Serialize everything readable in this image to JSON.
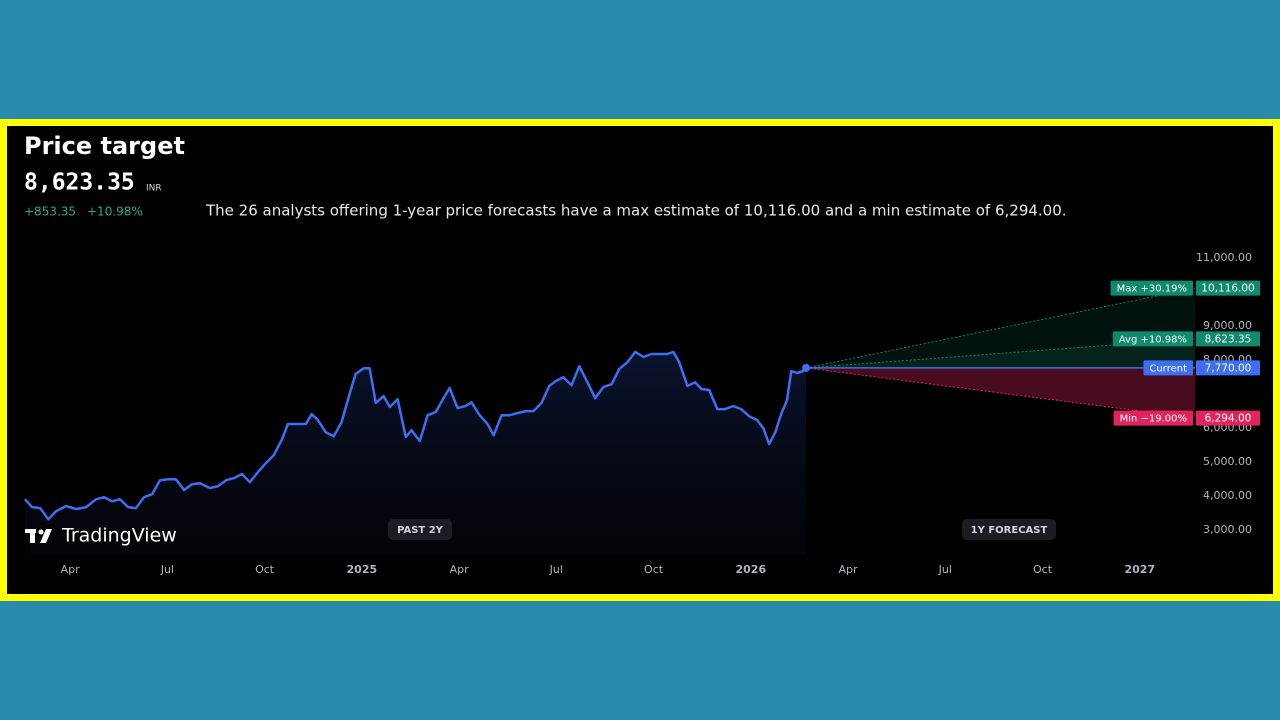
{
  "chart_data": {
    "type": "line",
    "title": "Price target",
    "price": "8,623.35",
    "currency": "INR",
    "change": "+853.35",
    "change_pct": "+10.98%",
    "description": "The 26 analysts offering 1-year price forecasts have a max estimate of 10,116.00 and a min estimate of 6,294.00.",
    "watermark": "TradingView",
    "badges": [
      "PAST 2Y",
      "1Y FORECAST"
    ],
    "color": "#3e6ff2",
    "x": [
      2024.134,
      2024.152,
      2024.173,
      2024.194,
      2024.214,
      2024.24,
      2024.265,
      2024.291,
      2024.317,
      2024.337,
      2024.358,
      2024.378,
      2024.399,
      2024.419,
      2024.44,
      2024.461,
      2024.481,
      2024.502,
      2024.522,
      2024.543,
      2024.563,
      2024.584,
      2024.609,
      2024.63,
      2024.651,
      2024.671,
      2024.692,
      2024.712,
      2024.733,
      2024.753,
      2024.774,
      2024.794,
      2024.81,
      2024.83,
      2024.856,
      2024.871,
      2024.887,
      2024.907,
      2024.928,
      2024.948,
      2024.969,
      2024.984,
      2025.005,
      2025.02,
      2025.036,
      2025.056,
      2025.072,
      2025.092,
      2025.113,
      2025.128,
      2025.149,
      2025.169,
      2025.19,
      2025.21,
      2025.226,
      2025.246,
      2025.267,
      2025.282,
      2025.303,
      2025.323,
      2025.339,
      2025.359,
      2025.38,
      2025.4,
      2025.421,
      2025.441,
      2025.462,
      2025.482,
      2025.498,
      2025.518,
      2025.539,
      2025.559,
      2025.58,
      2025.6,
      2025.621,
      2025.642,
      2025.662,
      2025.683,
      2025.703,
      2025.724,
      2025.744,
      2025.765,
      2025.785,
      2025.801,
      2025.816,
      2025.837,
      2025.857,
      2025.873,
      2025.893,
      2025.914,
      2025.934,
      2025.955,
      2025.975,
      2025.996,
      2026.016,
      2026.032,
      2026.047,
      2026.063,
      2026.078,
      2026.093,
      2026.104,
      2026.119,
      2026.135,
      2026.142
    ],
    "values": [
      3910,
      3680,
      3650,
      3320,
      3560,
      3710,
      3620,
      3680,
      3910,
      3970,
      3850,
      3910,
      3680,
      3650,
      3970,
      4060,
      4470,
      4500,
      4500,
      4180,
      4350,
      4380,
      4240,
      4290,
      4470,
      4530,
      4650,
      4410,
      4710,
      4970,
      5210,
      5650,
      6120,
      6120,
      6120,
      6410,
      6240,
      5880,
      5760,
      6180,
      7030,
      7590,
      7760,
      7760,
      6740,
      6940,
      6620,
      6850,
      5740,
      5940,
      5620,
      6380,
      6470,
      6880,
      7180,
      6590,
      6650,
      6760,
      6380,
      6120,
      5790,
      6380,
      6380,
      6440,
      6500,
      6500,
      6740,
      7240,
      7380,
      7500,
      7260,
      7820,
      7350,
      6880,
      7210,
      7290,
      7740,
      7940,
      8240,
      8090,
      8180,
      8180,
      8180,
      8240,
      7940,
      7240,
      7350,
      7150,
      7120,
      6560,
      6560,
      6650,
      6560,
      6350,
      6240,
      6000,
      5530,
      5880,
      6410,
      6820,
      7680,
      7620,
      7680,
      7770
    ],
    "targets": [
      {
        "label": "Max +30.19%",
        "value": 10116,
        "value_label": "10,116.00",
        "color": "#0f8a6c"
      },
      {
        "label": "Avg +10.98%",
        "value": 8623.35,
        "value_label": "8,623.35",
        "color": "#0f8a6c"
      },
      {
        "label": "Current",
        "value": 7770,
        "value_label": "7,770.00",
        "color": "#3e6ff2"
      },
      {
        "label": "Min −19.00%",
        "value": 6294,
        "value_label": "6,294.00",
        "color": "#e0245e"
      }
    ],
    "xlim": [
      2024.134,
      2027.142
    ],
    "xticks": [
      {
        "value": 2024.25,
        "label": "Apr"
      },
      {
        "value": 2024.5,
        "label": "Jul"
      },
      {
        "value": 2024.75,
        "label": "Oct"
      },
      2025,
      {
        "value": 2025.25,
        "label": "Apr"
      },
      {
        "value": 2025.5,
        "label": "Jul"
      },
      {
        "value": 2025.75,
        "label": "Oct"
      },
      2026,
      {
        "value": 2026.25,
        "label": "Apr"
      },
      {
        "value": 2026.5,
        "label": "Jul"
      },
      {
        "value": 2026.75,
        "label": "Oct"
      },
      2027
    ],
    "ylim": [
      2300,
      11500
    ],
    "yticks": [
      {
        "value": 3000,
        "label": "3,000.00"
      },
      {
        "value": 4000,
        "label": "4,000.00"
      },
      {
        "value": 5000,
        "label": "5,000.00"
      },
      {
        "value": 6000,
        "label": "6,000.00"
      },
      {
        "value": 8000,
        "label": "8,000.00"
      },
      {
        "value": 9000,
        "label": "9,000.00"
      },
      {
        "value": 11000,
        "label": "11,000.00"
      }
    ]
  }
}
